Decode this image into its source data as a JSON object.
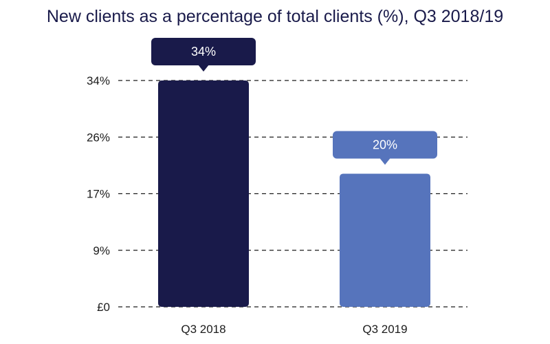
{
  "chart_data": {
    "type": "bar",
    "title": "New clients as a percentage of total clients (%), Q3 2018/19",
    "categories": [
      "Q3 2018",
      "Q3 2019"
    ],
    "values": [
      34,
      20
    ],
    "data_labels": [
      "34%",
      "20%"
    ],
    "bar_colors": [
      "#191a4a",
      "#5674bc"
    ],
    "ylim": [
      0,
      34
    ],
    "yticks": [
      0,
      8.5,
      17,
      25.5,
      34
    ],
    "ytick_labels": [
      "£0",
      "9%",
      "17%",
      "26%",
      "34%"
    ],
    "xlabel": "",
    "ylabel": "",
    "grid": "horizontal dashed",
    "legend": "none"
  }
}
